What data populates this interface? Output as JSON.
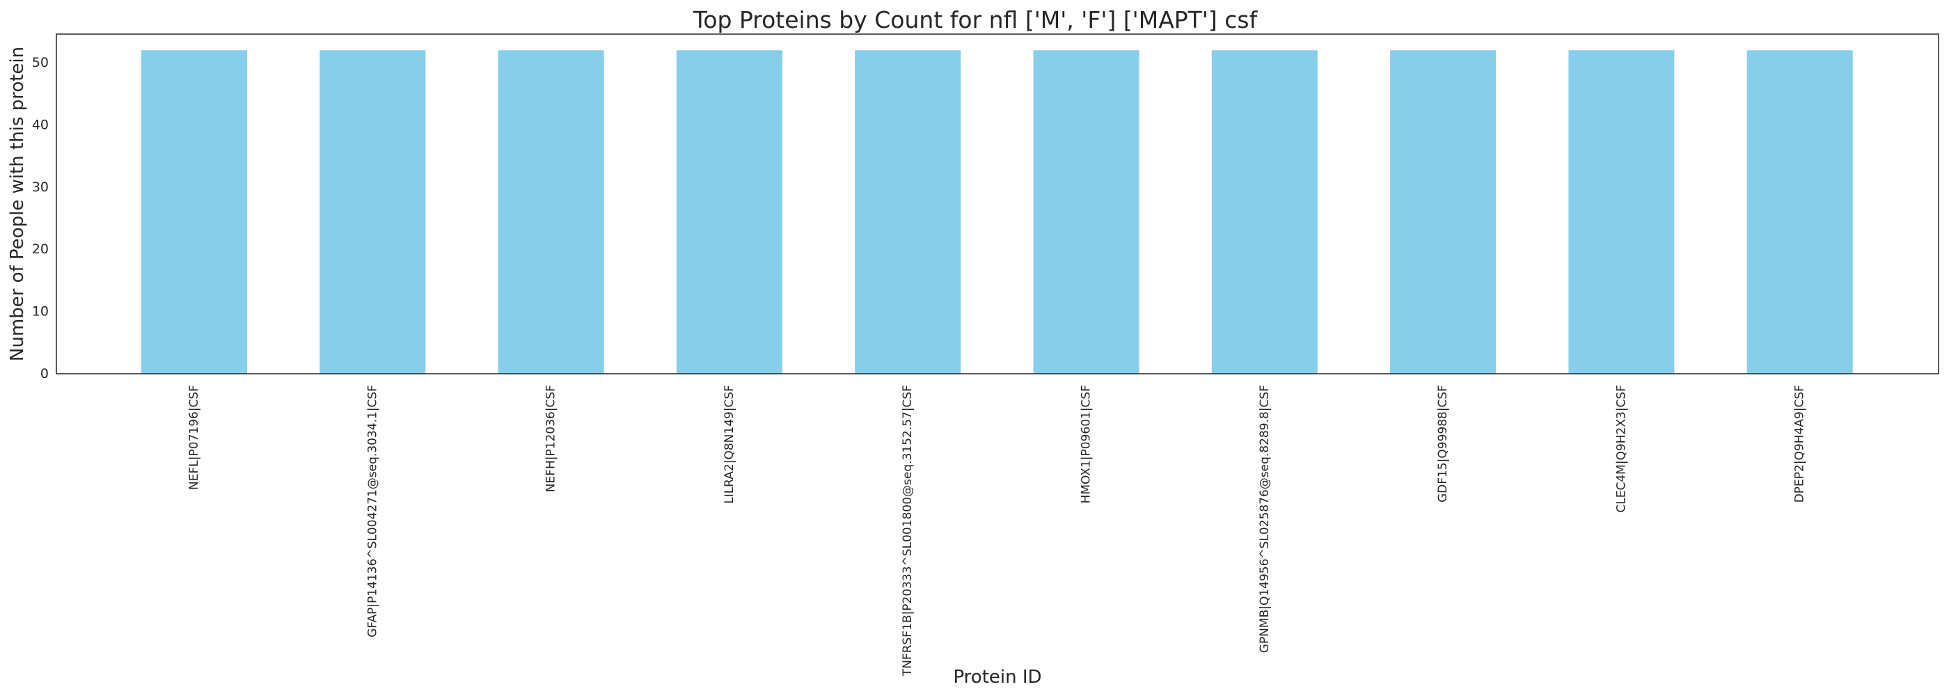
{
  "chart_data": {
    "type": "bar",
    "title": "Top Proteins by Count for nfl ['M', 'F'] ['MAPT'] csf",
    "xlabel": "Protein ID",
    "ylabel": "Number of People with this protein",
    "categories": [
      "NEFL|P07196|CSF",
      "GFAP|P14136^SL004271@seq.3034.1|CSF",
      "NEFH|P12036|CSF",
      "LILRA2|Q8N149|CSF",
      "TNFRSF1B|P20333^SL001800@seq.3152.57|CSF",
      "HMOX1|P09601|CSF",
      "GPNMB|Q14956^SL025876@seq.8289.8|CSF",
      "GDF15|Q99988|CSF",
      "CLEC4M|Q9H2X3|CSF",
      "DPEP2|Q9H4A9|CSF"
    ],
    "values": [
      52,
      52,
      52,
      52,
      52,
      52,
      52,
      52,
      52,
      52
    ],
    "ylim": [
      0,
      54.6
    ],
    "yticks": [
      0,
      10,
      20,
      30,
      40,
      50
    ],
    "grid": false,
    "bar_color": "#87CEEB"
  }
}
